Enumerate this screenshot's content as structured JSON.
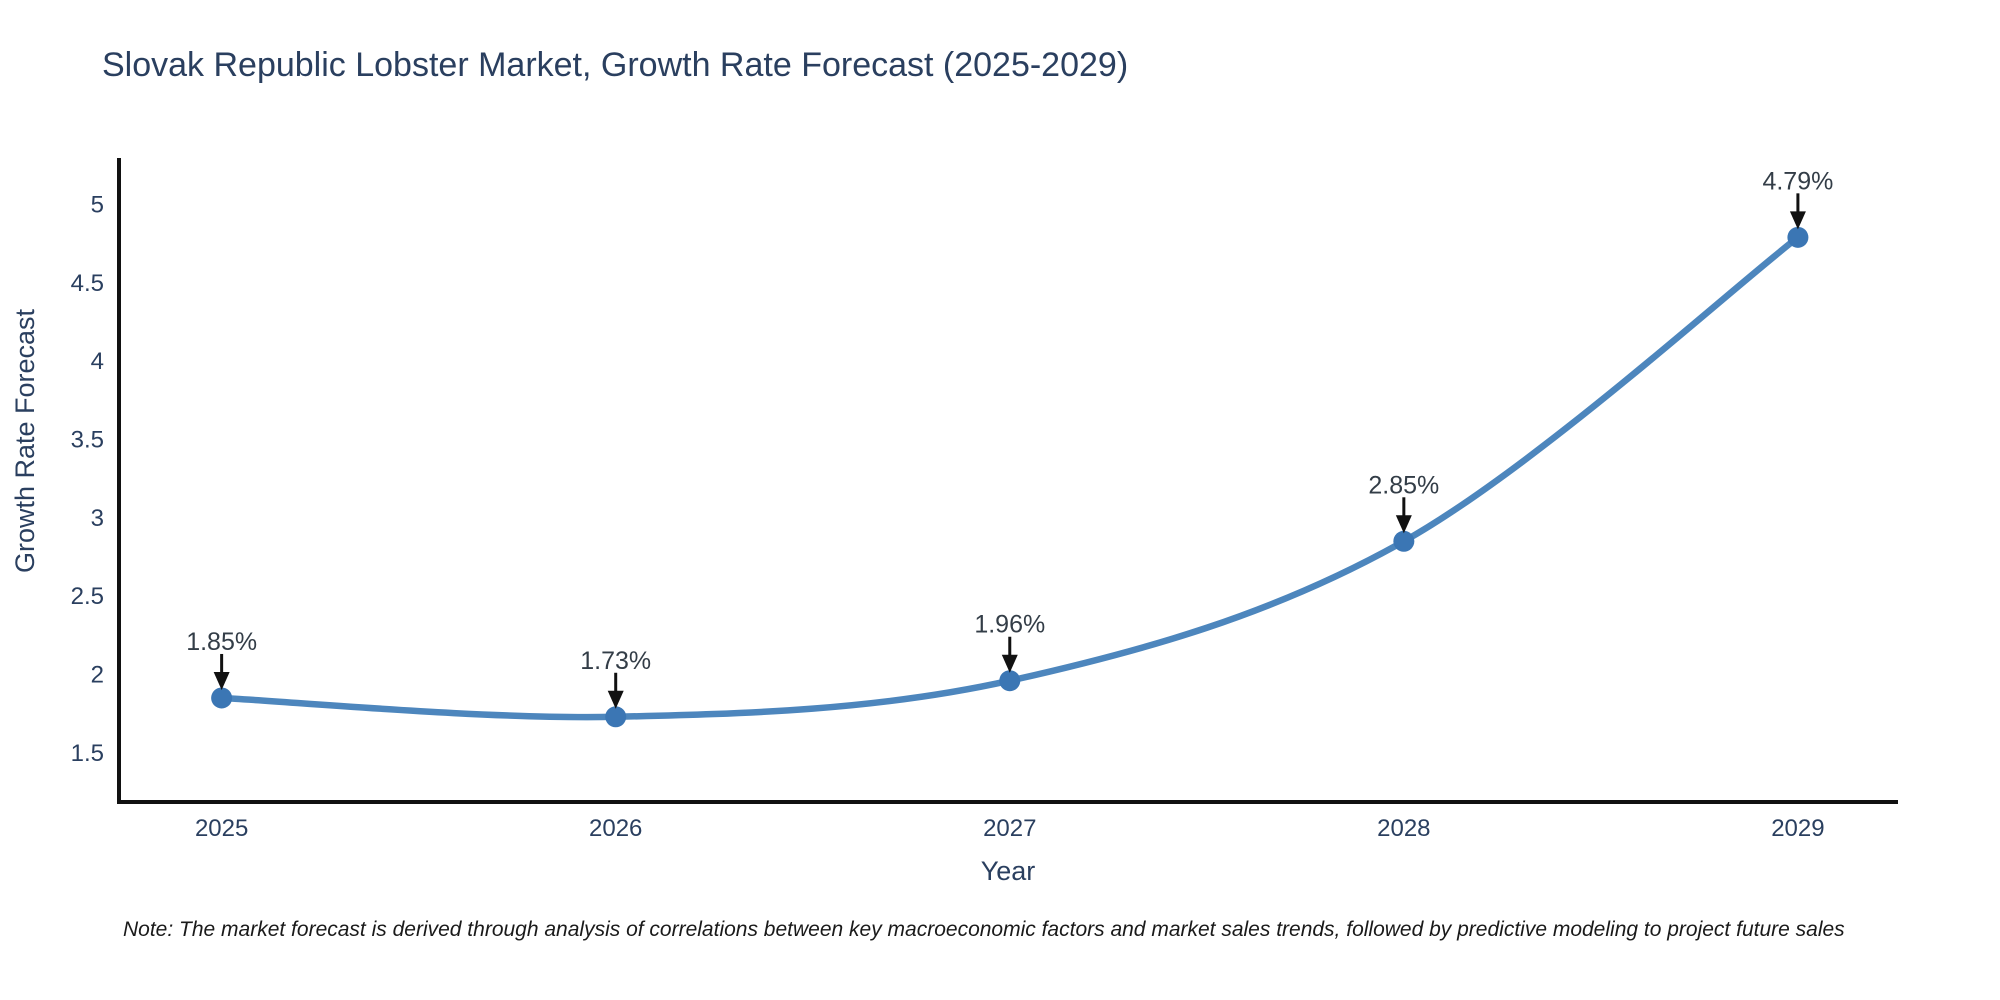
{
  "note": "Note: The market forecast is derived through analysis of correlations between key macroeconomic factors and market sales trends, followed by predictive modeling to project future sales",
  "chart_data": {
    "type": "line",
    "title": "Slovak Republic Lobster Market, Growth Rate Forecast (2025-2029)",
    "xlabel": "Year",
    "ylabel": "Growth Rate Forecast",
    "x": [
      2025,
      2026,
      2027,
      2028,
      2029
    ],
    "y": [
      1.85,
      1.73,
      1.96,
      2.85,
      4.79
    ],
    "point_labels": [
      "1.85%",
      "1.73%",
      "1.96%",
      "2.85%",
      "4.79%"
    ],
    "x_tick_labels": [
      "2025",
      "2026",
      "2027",
      "2028",
      "2029"
    ],
    "y_ticks": [
      1.5,
      2,
      2.5,
      3,
      3.5,
      4,
      4.5,
      5
    ],
    "xlim": [
      2024.737,
      2029.254
    ],
    "ylim": [
      1.186,
      5.29
    ],
    "line_shape": "spline",
    "grid": false,
    "legend_position": "none",
    "annotation_style": "arrow-down-to-point",
    "colors": {
      "line": "#4d86bd",
      "marker": "#3b76b4",
      "axis": "#111111",
      "tick_text": "#2a3f5f",
      "title_text": "#2a3f5f",
      "annotation_text": "#333d47",
      "arrow": "#111111",
      "note_text": "#1a1a1a",
      "background": "#ffffff"
    }
  }
}
